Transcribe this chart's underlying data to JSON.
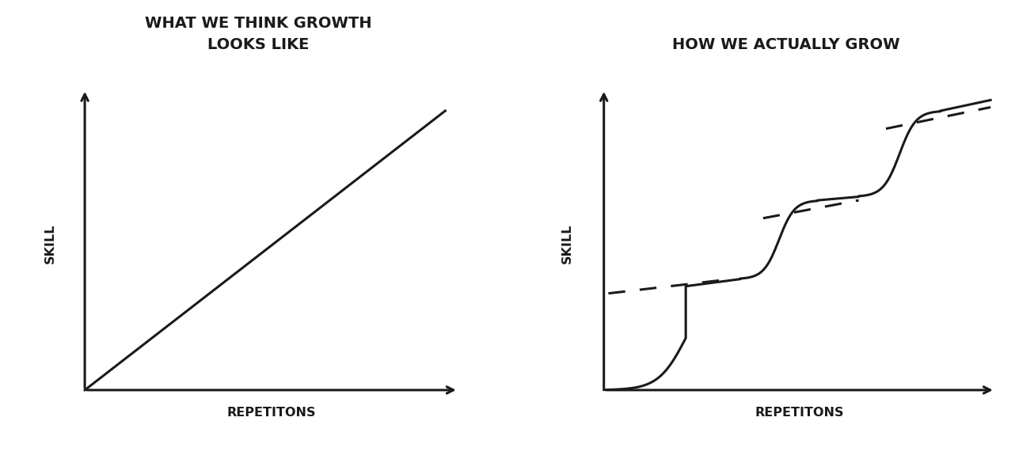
{
  "title1": "WHAT WE THINK GROWTH\nLOOKS LIKE",
  "title2": "HOW WE ACTUALLY GROW",
  "xlabel": "REPETITONS",
  "ylabel": "SKILL",
  "background_color": "#ffffff",
  "line_color": "#1a1a1a",
  "title_fontsize": 14,
  "label_fontsize": 11.5,
  "font_family": "DejaVu Sans"
}
